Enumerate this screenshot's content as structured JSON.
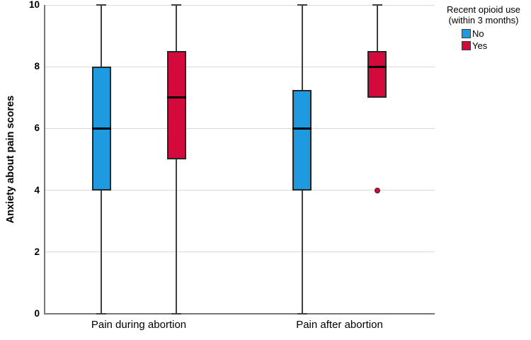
{
  "chart_data": {
    "type": "boxplot",
    "title": "",
    "ylabel": "Anxiety about pain scores",
    "xlabel": "",
    "ylim": [
      0,
      10
    ],
    "yticks": [
      0,
      2,
      4,
      6,
      8,
      10
    ],
    "grid": "horizontal-light-gray",
    "background": "#ffffff",
    "categories": [
      "Pain during abortion",
      "Pain after abortion"
    ],
    "legend": {
      "title_line1": "Recent opioid use",
      "title_line2": "(within 3 months)",
      "position": "top-right",
      "entries": [
        {
          "label": "No",
          "color": "#1e9be0"
        },
        {
          "label": "Yes",
          "color": "#d50a3c"
        }
      ]
    },
    "series": [
      {
        "name": "No",
        "color": "#1e9be0",
        "boxes": [
          {
            "category": "Pain during abortion",
            "whisker_low": 0,
            "q1": 4,
            "median": 6,
            "q3": 8,
            "whisker_high": 10,
            "outliers": []
          },
          {
            "category": "Pain after abortion",
            "whisker_low": 0,
            "q1": 4,
            "median": 6,
            "q3": 7.25,
            "whisker_high": 10,
            "outliers": []
          }
        ]
      },
      {
        "name": "Yes",
        "color": "#d50a3c",
        "boxes": [
          {
            "category": "Pain during abortion",
            "whisker_low": 0,
            "q1": 5,
            "median": 7,
            "q3": 8.5,
            "whisker_high": 10,
            "outliers": []
          },
          {
            "category": "Pain after abortion",
            "whisker_low": 7,
            "q1": 7,
            "median": 8,
            "q3": 8.5,
            "whisker_high": 10,
            "outliers": [
              4
            ]
          }
        ]
      }
    ],
    "outlier_style": {
      "fill": "#c1103c",
      "border": "#5e0e23"
    }
  }
}
